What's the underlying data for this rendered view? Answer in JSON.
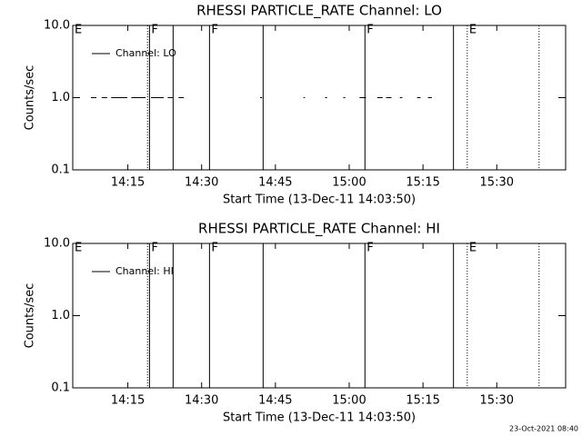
{
  "chart_data": [
    {
      "type": "line",
      "title": "RHESSI PARTICLE_RATE Channel: LO",
      "x_label": "Start Time (13-Dec-11 14:03:50)",
      "y_label": "Counts/sec",
      "log_y": true,
      "legend": "upper left",
      "xlim": [
        843.8,
        944.0
      ],
      "ylim": [
        0.1,
        10
      ],
      "xticks": [
        {
          "value": 855,
          "label": "14:15"
        },
        {
          "value": 870,
          "label": "14:30"
        },
        {
          "value": 885,
          "label": "14:45"
        },
        {
          "value": 900,
          "label": "15:00"
        },
        {
          "value": 915,
          "label": "15:15"
        },
        {
          "value": 930,
          "label": "15:30"
        }
      ],
      "yticks": [
        0.1,
        {
          "value": 1,
          "label": "1.0"
        },
        {
          "value": 10,
          "label": "10.0"
        }
      ],
      "events": [
        {
          "x": 843.8,
          "label": "E",
          "style": "solid"
        },
        {
          "x": 859.0,
          "style": "dotted"
        },
        {
          "x": 859.4,
          "label": "F",
          "style": "solid"
        },
        {
          "x": 864.2,
          "style": "solid"
        },
        {
          "x": 871.6,
          "label": "F",
          "style": "solid"
        },
        {
          "x": 882.5,
          "style": "solid"
        },
        {
          "x": 903.2,
          "label": "F",
          "style": "solid"
        },
        {
          "x": 921.2,
          "style": "solid"
        },
        {
          "x": 924.0,
          "label": "E",
          "style": "dotted"
        },
        {
          "x": 938.6,
          "style": "dotted"
        }
      ],
      "series": [
        {
          "name": "Channel: LO",
          "color": "#000000",
          "x": [
            847.5,
            848.6,
            848.6,
            849.7,
            850.8,
            850.8,
            851.6,
            854.9,
            854.9,
            855.7,
            858.6,
            858.6,
            859.7,
            862.3,
            862.3,
            863.1,
            864.2,
            864.2,
            865.3,
            866.4,
            866.4,
            881.9,
            882.3,
            882.3,
            890.7,
            891.0,
            891.0,
            895.1,
            895.5,
            895.5,
            898.8,
            899.2,
            899.2,
            902.1,
            903.4,
            903.4,
            905.7,
            906.8,
            906.8,
            907.5,
            908.6,
            908.6,
            910.3,
            910.8,
            910.8,
            913.8,
            914.5,
            914.5,
            916.0,
            916.8
          ],
          "values": [
            1,
            1,
            null,
            1,
            1,
            null,
            1,
            1,
            null,
            1,
            1,
            null,
            1,
            1,
            null,
            1,
            1,
            null,
            1,
            1,
            null,
            1,
            1,
            null,
            1,
            1,
            null,
            1,
            1,
            null,
            1,
            1,
            null,
            1,
            1,
            null,
            1,
            1,
            null,
            1,
            1,
            null,
            1,
            1,
            null,
            1,
            1,
            null,
            1,
            1
          ]
        }
      ]
    },
    {
      "type": "line",
      "title": "RHESSI PARTICLE_RATE Channel: HI",
      "x_label": "Start Time (13-Dec-11 14:03:50)",
      "y_label": "Counts/sec",
      "log_y": true,
      "legend": "upper left",
      "xlim": [
        843.8,
        944.0
      ],
      "ylim": [
        0.1,
        10
      ],
      "xticks": [
        {
          "value": 855,
          "label": "14:15"
        },
        {
          "value": 870,
          "label": "14:30"
        },
        {
          "value": 885,
          "label": "14:45"
        },
        {
          "value": 900,
          "label": "15:00"
        },
        {
          "value": 915,
          "label": "15:15"
        },
        {
          "value": 930,
          "label": "15:30"
        }
      ],
      "yticks": [
        0.1,
        {
          "value": 1,
          "label": "1.0"
        },
        {
          "value": 10,
          "label": "10.0"
        }
      ],
      "events": [
        {
          "x": 843.8,
          "label": "E",
          "style": "solid"
        },
        {
          "x": 859.0,
          "style": "dotted"
        },
        {
          "x": 859.4,
          "label": "F",
          "style": "solid"
        },
        {
          "x": 864.2,
          "style": "solid"
        },
        {
          "x": 871.6,
          "label": "F",
          "style": "solid"
        },
        {
          "x": 882.5,
          "style": "solid"
        },
        {
          "x": 903.2,
          "label": "F",
          "style": "solid"
        },
        {
          "x": 921.2,
          "style": "solid"
        },
        {
          "x": 924.0,
          "label": "E",
          "style": "dotted"
        },
        {
          "x": 938.6,
          "style": "dotted"
        }
      ],
      "series": [
        {
          "name": "Channel: HI",
          "color": "#000000",
          "x": [],
          "values": []
        }
      ]
    }
  ],
  "footer": "23-Oct-2021 08:40"
}
